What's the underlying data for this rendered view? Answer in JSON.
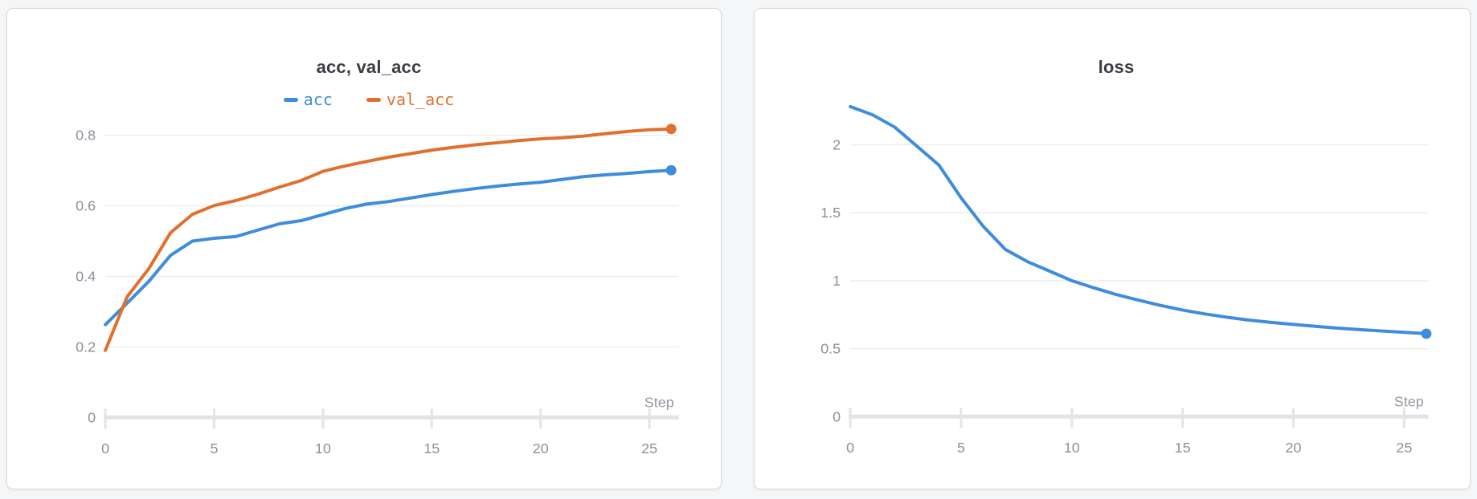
{
  "theme": {
    "page_bg": "#f5f6f7",
    "card_bg": "#ffffff",
    "card_border": "#d9dadc",
    "title_color": "#3a3d43",
    "tick_label_color": "#8b909a",
    "axis_label_color": "#9599a2",
    "grid_color": "#ededef",
    "axis_color": "#e3e4e6",
    "accent_blue": "#3e8ddc",
    "accent_orange": "#e1702f"
  },
  "chart_data": [
    {
      "type": "line",
      "title": "acc, val_acc",
      "x_axis_label": "Step",
      "legend_position": "top-center",
      "grid": true,
      "x": [
        0,
        1,
        2,
        3,
        4,
        5,
        6,
        7,
        8,
        9,
        10,
        11,
        12,
        13,
        14,
        15,
        16,
        17,
        18,
        19,
        20,
        21,
        22,
        23,
        24,
        25,
        26
      ],
      "xticks": [
        0,
        5,
        10,
        15,
        20,
        25
      ],
      "yticks": [
        0,
        0.2,
        0.4,
        0.6,
        0.8
      ],
      "xlim": [
        0,
        26.35
      ],
      "ylim": [
        0,
        0.864
      ],
      "series": [
        {
          "name": "acc",
          "color": "#3e8ddc",
          "values": [
            0.263,
            0.324,
            0.386,
            0.46,
            0.5,
            0.508,
            0.513,
            0.531,
            0.549,
            0.558,
            0.575,
            0.592,
            0.605,
            0.612,
            0.622,
            0.632,
            0.641,
            0.649,
            0.656,
            0.662,
            0.667,
            0.675,
            0.683,
            0.688,
            0.692,
            0.697,
            0.701
          ]
        },
        {
          "name": "val_acc",
          "color": "#e1702f",
          "values": [
            0.19,
            0.342,
            0.422,
            0.524,
            0.576,
            0.601,
            0.615,
            0.633,
            0.653,
            0.672,
            0.698,
            0.713,
            0.726,
            0.738,
            0.748,
            0.758,
            0.766,
            0.773,
            0.779,
            0.785,
            0.79,
            0.793,
            0.798,
            0.805,
            0.811,
            0.816,
            0.818
          ]
        }
      ]
    },
    {
      "type": "line",
      "title": "loss",
      "x_axis_label": "Step",
      "legend_position": "none",
      "grid": true,
      "x": [
        0,
        1,
        2,
        3,
        4,
        5,
        6,
        7,
        8,
        9,
        10,
        11,
        12,
        13,
        14,
        15,
        16,
        17,
        18,
        19,
        20,
        21,
        22,
        23,
        24,
        25,
        26
      ],
      "xticks": [
        0,
        5,
        10,
        15,
        20,
        25
      ],
      "yticks": [
        0,
        0.5,
        1,
        1.5,
        2
      ],
      "xlim": [
        0,
        26.1
      ],
      "ylim": [
        0,
        2.382
      ],
      "series": [
        {
          "name": "loss",
          "color": "#3e8ddc",
          "values": [
            2.28,
            2.22,
            2.13,
            1.99,
            1.85,
            1.61,
            1.4,
            1.23,
            1.14,
            1.07,
            1.0,
            0.947,
            0.898,
            0.857,
            0.818,
            0.784,
            0.755,
            0.731,
            0.71,
            0.693,
            0.678,
            0.664,
            0.651,
            0.64,
            0.63,
            0.62,
            0.61
          ]
        }
      ]
    }
  ]
}
